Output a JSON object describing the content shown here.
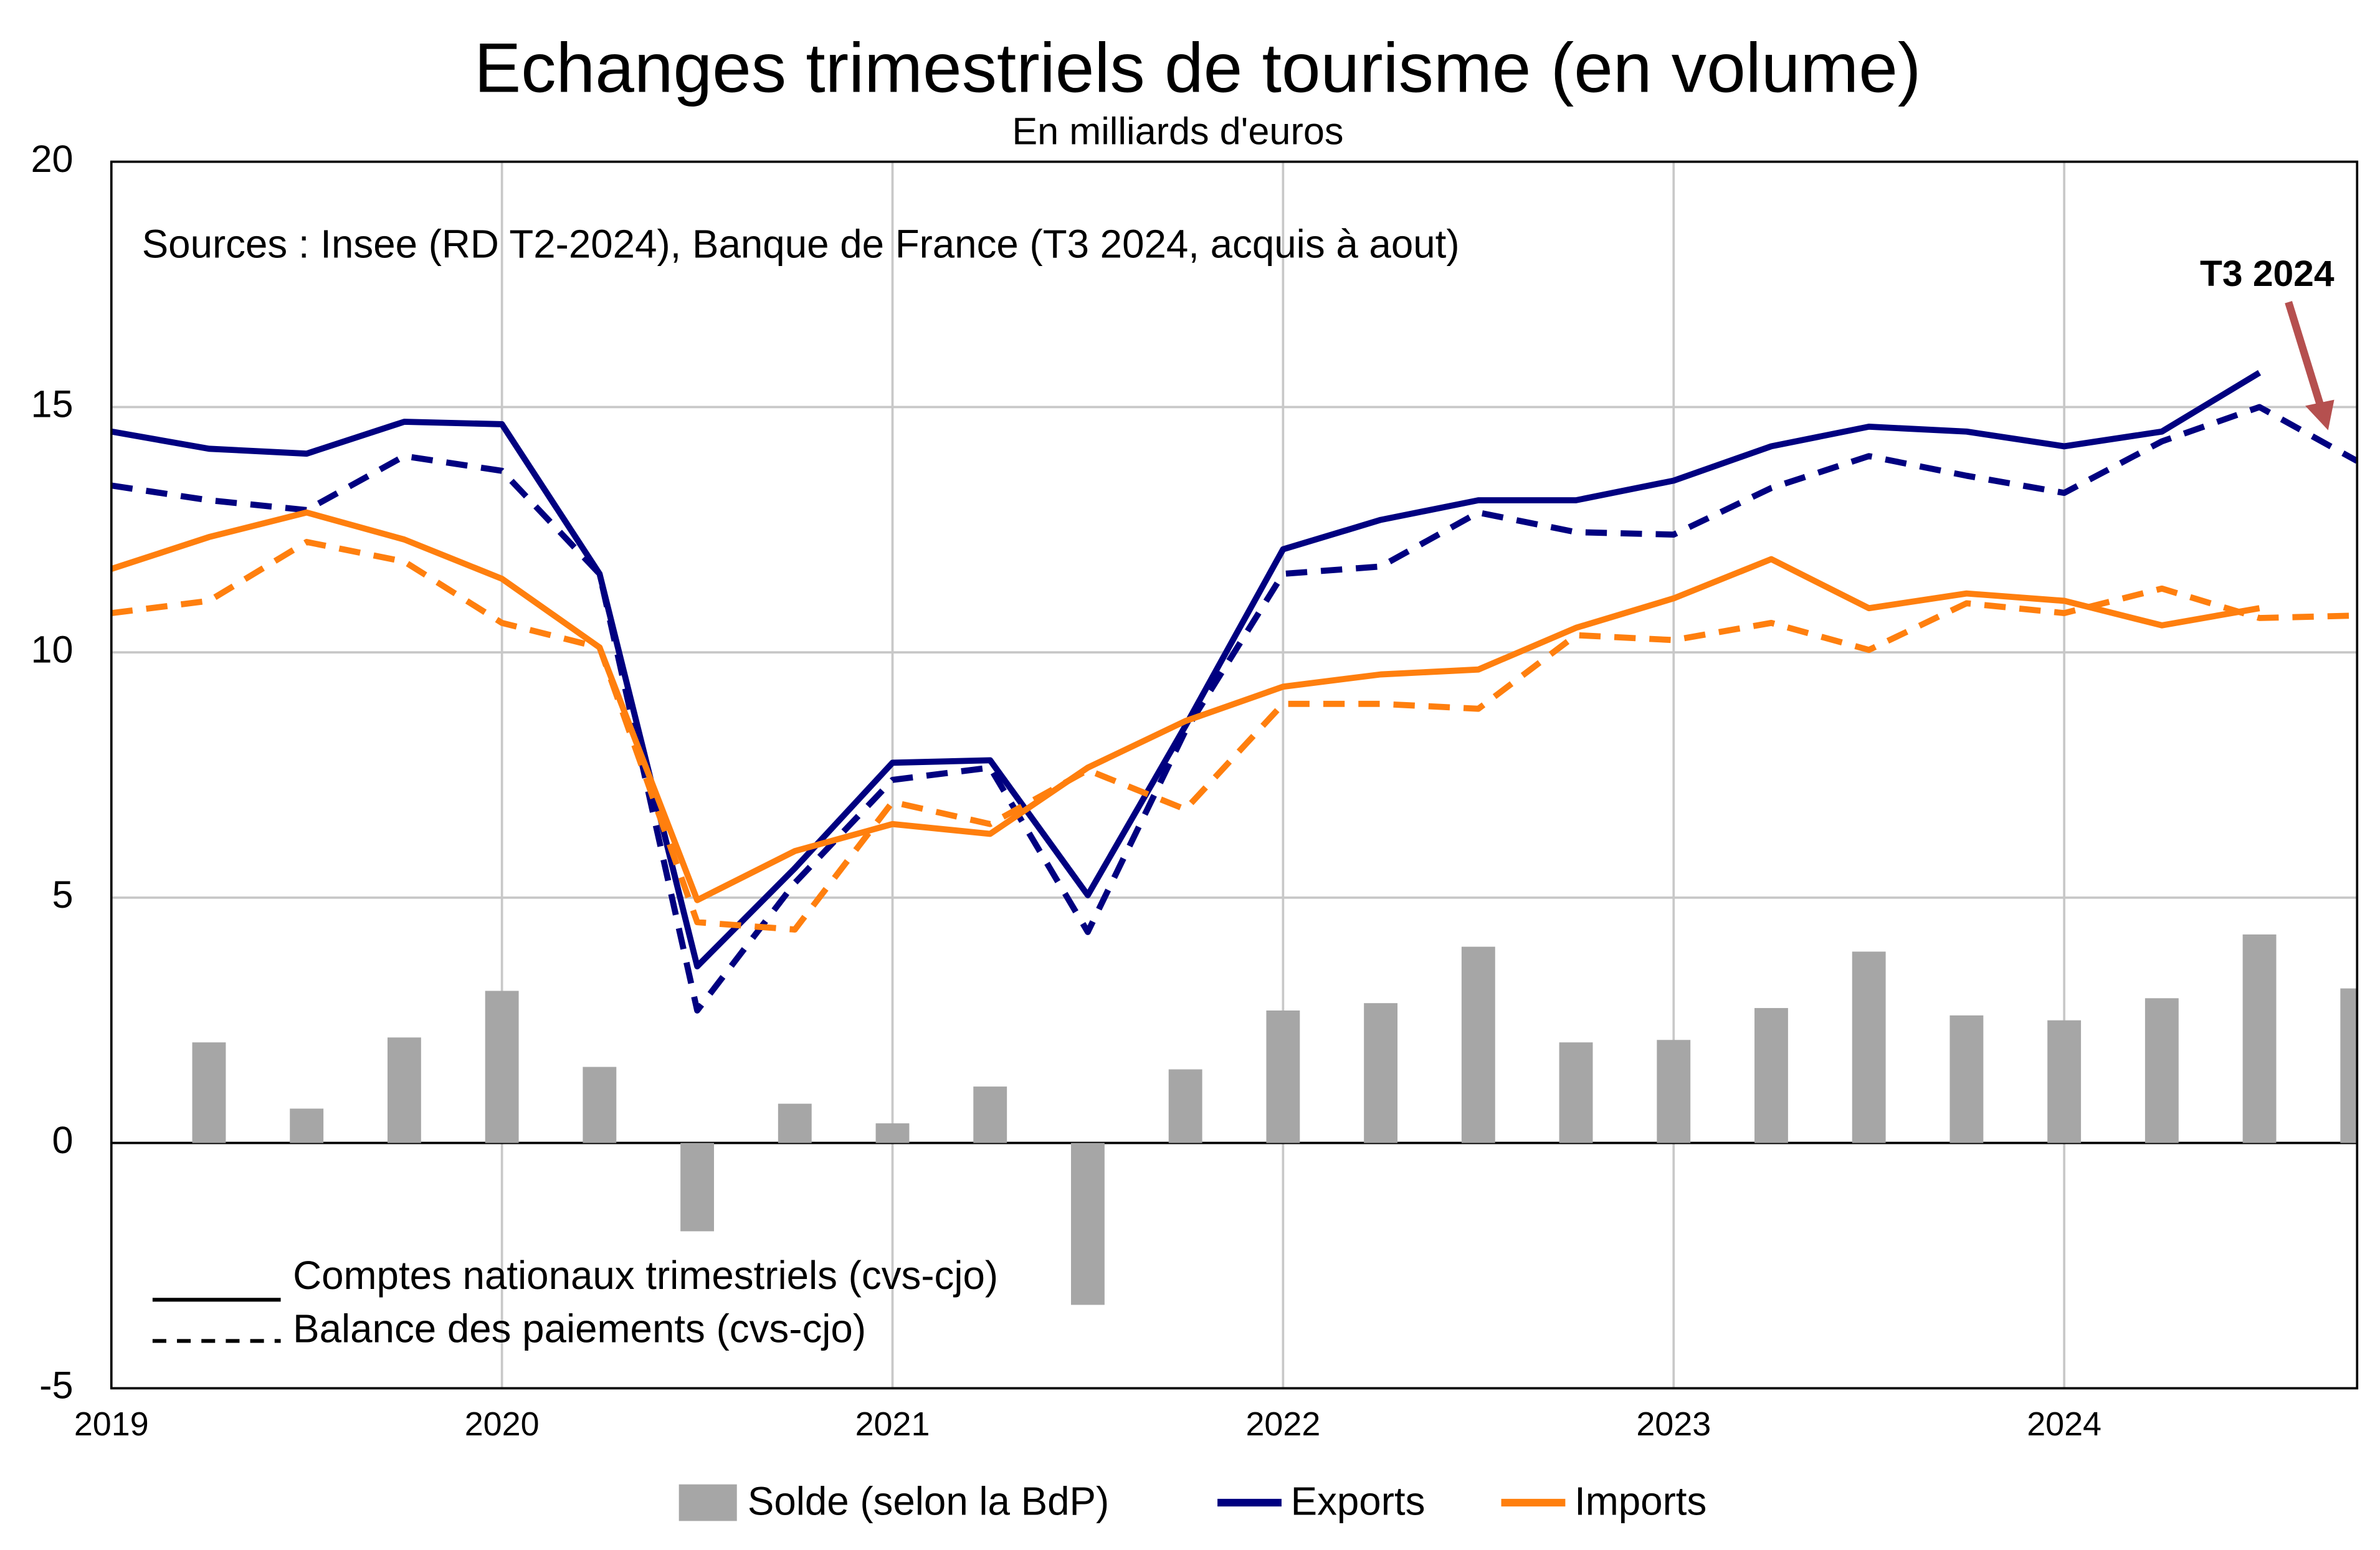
{
  "chart_data": {
    "type": "bar_line",
    "title": "Echanges trimestriels de tourisme (en volume)",
    "subtitle": "En milliards d'euros",
    "note": "Sources : Insee (RD T2-2024), Banque de France (T3 2024, acquis à aout)",
    "annotation": "T3 2024",
    "xlim": [
      2019,
      2024.75
    ],
    "xticks": [
      2019,
      2020,
      2021,
      2022,
      2023,
      2024
    ],
    "ylim": [
      -5,
      20
    ],
    "yticks": [
      -5,
      0,
      5,
      10,
      15,
      20
    ],
    "grid": true,
    "x": [
      2019,
      2019.25,
      2019.5,
      2019.75,
      2020,
      2020.25,
      2020.5,
      2020.75,
      2021,
      2021.25,
      2021.5,
      2021.75,
      2022,
      2022.25,
      2022.5,
      2022.75,
      2023,
      2023.25,
      2023.5,
      2023.75,
      2024,
      2024.25,
      2024.5,
      2024.75
    ],
    "bar_series": {
      "name": "Solde (selon la BdP)",
      "color": "#a6a6a6",
      "x": [
        2019.25,
        2019.5,
        2019.75,
        2020,
        2020.25,
        2020.5,
        2020.75,
        2021,
        2021.25,
        2021.5,
        2021.75,
        2022,
        2022.25,
        2022.5,
        2022.75,
        2023,
        2023.25,
        2023.5,
        2023.75,
        2024,
        2024.25,
        2024.5,
        2024.75
      ],
      "values": [
        2.05,
        0.7,
        2.15,
        3.1,
        1.55,
        -1.8,
        0.8,
        0.4,
        1.15,
        -3.3,
        1.5,
        2.7,
        2.85,
        4.0,
        2.05,
        2.1,
        2.75,
        3.9,
        2.6,
        2.5,
        2.95,
        4.25,
        3.15
      ]
    },
    "series": [
      {
        "name": "Exports",
        "color": "#000080",
        "values": [
          14.5,
          14.15,
          14.05,
          14.7,
          14.65,
          11.6,
          3.6,
          5.6,
          7.75,
          7.8,
          5.05,
          8.5,
          12.1,
          12.7,
          13.1,
          13.1,
          13.5,
          14.2,
          14.6,
          14.5,
          14.2,
          14.5,
          15.7,
          null
        ],
        "values_bdp": [
          13.4,
          13.1,
          12.9,
          14.0,
          13.7,
          11.6,
          2.7,
          5.3,
          7.4,
          7.65,
          4.3,
          8.4,
          11.6,
          11.75,
          12.85,
          12.45,
          12.4,
          13.35,
          14.0,
          13.6,
          13.25,
          14.3,
          15.0,
          13.9
        ]
      },
      {
        "name": "Imports",
        "color": "#ff7f0e",
        "values": [
          11.7,
          12.35,
          12.85,
          12.3,
          11.5,
          10.1,
          4.95,
          5.95,
          6.5,
          6.3,
          7.65,
          8.6,
          9.3,
          9.55,
          9.65,
          10.5,
          11.1,
          11.9,
          10.9,
          11.2,
          11.05,
          10.55,
          10.9,
          null
        ],
        "values_bdp": [
          10.8,
          11.05,
          12.25,
          11.85,
          10.6,
          10.1,
          4.5,
          4.35,
          6.95,
          6.5,
          7.6,
          6.8,
          8.95,
          8.95,
          8.85,
          10.35,
          10.25,
          10.6,
          10.05,
          11.0,
          10.8,
          11.3,
          10.7,
          10.75
        ]
      }
    ],
    "line_styles": [
      {
        "name": "Comptes nationaux trimestriels (cvs-cjo)",
        "key": "values"
      },
      {
        "name": "Balance des paiements (cvs-cjo)",
        "key": "values_bdp"
      }
    ]
  }
}
